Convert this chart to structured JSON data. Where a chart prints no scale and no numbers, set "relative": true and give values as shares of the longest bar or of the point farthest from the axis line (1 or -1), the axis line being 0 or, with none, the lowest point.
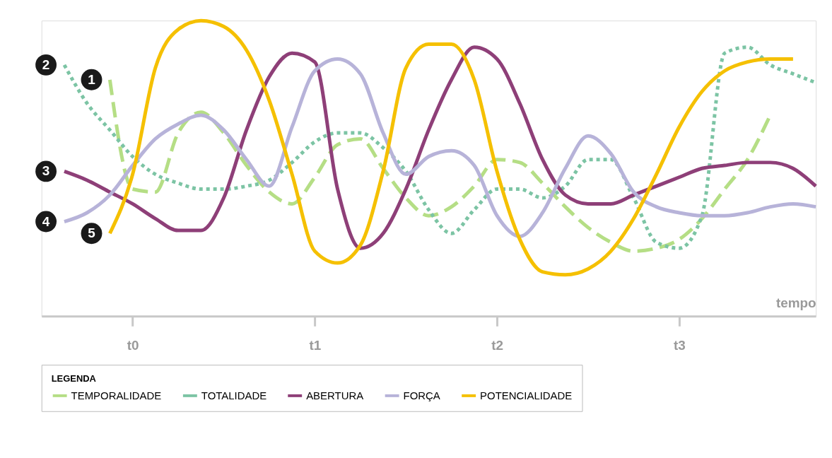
{
  "chart_data": {
    "type": "line",
    "relative": true,
    "xlabel": "tempo",
    "legend_title": "LEGENDA",
    "legend": "bottom",
    "grid": false,
    "tick_labels": "x",
    "marker": "none",
    "categories": [
      null,
      null,
      null,
      null,
      "t0",
      null,
      null,
      null,
      null,
      null,
      null,
      null,
      "t1",
      null,
      null,
      null,
      null,
      null,
      null,
      null,
      "t2",
      null,
      null,
      null,
      null,
      null,
      null,
      null,
      "t3",
      null,
      null,
      null,
      null,
      null,
      null
    ],
    "series": [
      {
        "name": "TEMPORALIDADE",
        "color": "#b5de85",
        "line_style": "dashed",
        "values": [
          null,
          null,
          null,
          0.8,
          0.43,
          0.42,
          0.62,
          0.69,
          0.62,
          0.51,
          0.42,
          0.38,
          0.47,
          0.58,
          0.6,
          0.5,
          0.4,
          0.34,
          0.37,
          0.44,
          0.53,
          0.52,
          0.45,
          0.37,
          0.3,
          0.25,
          0.22,
          0.23,
          0.26,
          0.33,
          0.43,
          0.53,
          0.68,
          null,
          null
        ]
      },
      {
        "name": "TOTALIDADE",
        "color": "#7cc4a4",
        "line_style": "dotted",
        "values": [
          null,
          0.85,
          0.72,
          0.63,
          0.54,
          0.48,
          0.45,
          0.43,
          0.43,
          0.44,
          0.46,
          0.52,
          0.59,
          0.62,
          0.62,
          0.57,
          0.49,
          0.36,
          0.28,
          0.36,
          0.43,
          0.43,
          0.4,
          0.44,
          0.53,
          0.53,
          0.4,
          0.25,
          0.23,
          0.34,
          0.89,
          0.91,
          0.85,
          0.82,
          0.79
        ]
      },
      {
        "name": "ABERTURA",
        "color": "#8e3f78",
        "line_style": "solid",
        "values": [
          null,
          0.49,
          0.46,
          0.42,
          0.38,
          0.33,
          0.29,
          0.29,
          0.4,
          0.63,
          0.81,
          0.89,
          0.86,
          0.43,
          0.23,
          0.28,
          0.43,
          0.63,
          0.8,
          0.91,
          0.87,
          0.72,
          0.53,
          0.41,
          0.38,
          0.38,
          0.41,
          0.44,
          0.47,
          0.5,
          0.51,
          0.52,
          0.52,
          0.5,
          0.44
        ]
      },
      {
        "name": "FORÇA",
        "color": "#b7b3d9",
        "line_style": "solid",
        "values": [
          null,
          0.32,
          0.35,
          0.41,
          0.51,
          0.6,
          0.65,
          0.68,
          0.63,
          0.53,
          0.44,
          0.64,
          0.83,
          0.87,
          0.82,
          0.62,
          0.48,
          0.54,
          0.56,
          0.51,
          0.34,
          0.27,
          0.35,
          0.5,
          0.61,
          0.55,
          0.42,
          0.37,
          0.35,
          0.34,
          0.34,
          0.35,
          0.37,
          0.38,
          0.37
        ]
      },
      {
        "name": "POTENCIALIDADE",
        "color": "#f5c000",
        "line_style": "solid",
        "values": [
          null,
          null,
          null,
          0.28,
          0.48,
          0.84,
          0.97,
          1,
          0.98,
          0.9,
          0.73,
          0.48,
          0.22,
          0.18,
          0.24,
          0.49,
          0.84,
          0.92,
          0.92,
          0.8,
          0.49,
          0.26,
          0.15,
          0.14,
          0.16,
          0.22,
          0.33,
          0.48,
          0.64,
          0.76,
          0.83,
          0.86,
          0.87,
          0.87,
          null
        ]
      }
    ],
    "annotations": [
      "1",
      "2",
      "3",
      "4",
      "5"
    ]
  }
}
